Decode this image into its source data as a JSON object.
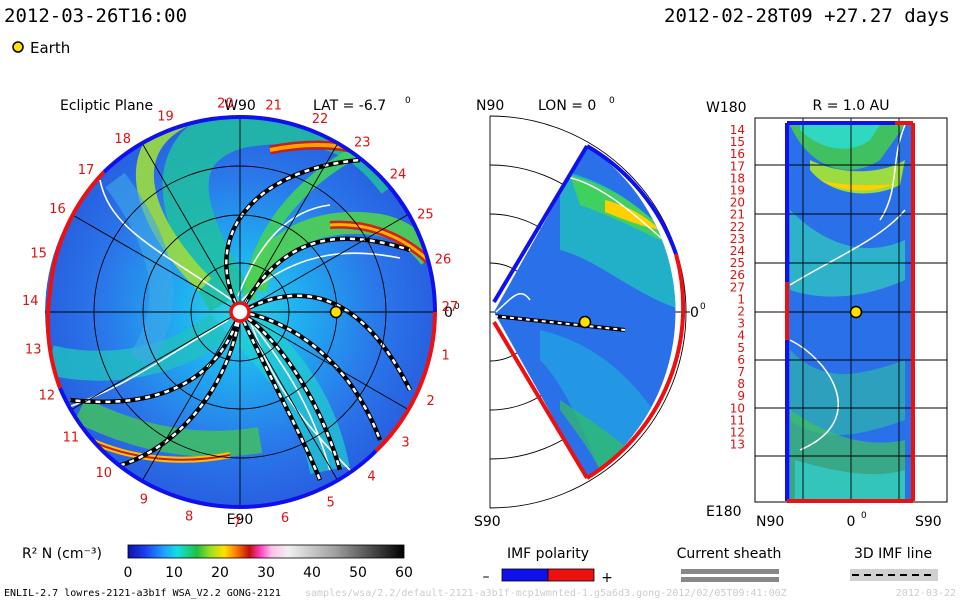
{
  "header": {
    "timestamp": "2012-03-26T16:00",
    "reference": "2012-02-28T09 +27.27 days",
    "legend_earth": "Earth"
  },
  "ecliptic_panel": {
    "title": "Ecliptic Plane",
    "top_label": "W90",
    "bottom_label": "E90",
    "right_label": "0",
    "lat_label": "LAT = -6.7",
    "lat_degree_mark": "0",
    "carrington_rotations": [
      "20",
      "21",
      "22",
      "23",
      "24",
      "25",
      "26",
      "27",
      "1",
      "2",
      "3",
      "4",
      "5",
      "6",
      "7",
      "8",
      "9",
      "10",
      "11",
      "12",
      "13",
      "14",
      "15",
      "16",
      "17",
      "18",
      "19"
    ]
  },
  "meridional_panel": {
    "top_label": "N90",
    "lon_label": "LON = 0",
    "lon_degree_mark": "0",
    "bottom_label": "S90",
    "right_label": "0"
  },
  "radial_panel": {
    "title": "R = 1.0 AU",
    "top_left_label": "W180",
    "bottom_left_label": "E180",
    "bottom_axis": [
      "N90",
      "0",
      "S90"
    ],
    "rows": [
      "14",
      "15",
      "16",
      "17",
      "18",
      "19",
      "20",
      "21",
      "22",
      "23",
      "24",
      "25",
      "26",
      "27",
      "1",
      "2",
      "3",
      "4",
      "5",
      "6",
      "7",
      "8",
      "9",
      "10",
      "11",
      "12",
      "13"
    ]
  },
  "colorbar": {
    "label": "R² N (cm⁻³)",
    "ticks": [
      "0",
      "10",
      "20",
      "30",
      "40",
      "50",
      "60"
    ]
  },
  "legends": {
    "imf_title": "IMF polarity",
    "imf_minus": "–",
    "imf_plus": "+",
    "sheath_title": "Current sheath",
    "line_title": "3D IMF line"
  },
  "footer": {
    "credit": "ENLIL-2.7 lowres-2121-a3b1f WSA_V2.2 GONG-2121",
    "run_id": "samples/wsa/2.2/default-2121-a3b1f-mcp1wmnted-1.g5a6d3.gong-2012/02/05T09:41:00Z",
    "date_stamp": "2012-03-22"
  },
  "colors": {
    "polarity_negative": "#1010ee",
    "polarity_positive": "#ee1010",
    "label_red": "#e01010",
    "background_solar_wind": "#2a6fe8"
  }
}
